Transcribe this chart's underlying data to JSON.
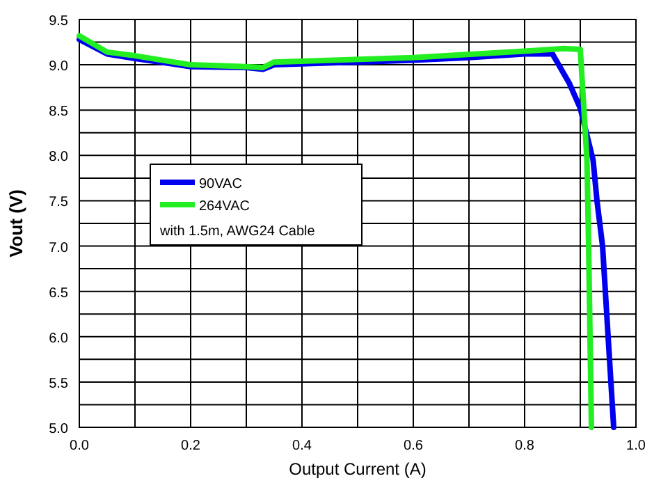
{
  "chart_data": {
    "type": "line",
    "xlabel": "Output Current (A)",
    "ylabel": "Vout (V)",
    "xlim": [
      0,
      1
    ],
    "xticks": [
      {
        "value": 0,
        "label": "0.0"
      },
      {
        "value": 0.1,
        "label": null
      },
      {
        "value": 0.2,
        "label": "0.2"
      },
      {
        "value": 0.3,
        "label": null
      },
      {
        "value": 0.4,
        "label": "0.4"
      },
      {
        "value": 0.5,
        "label": null
      },
      {
        "value": 0.6,
        "label": "0.6"
      },
      {
        "value": 0.7,
        "label": null
      },
      {
        "value": 0.8,
        "label": "0.8"
      },
      {
        "value": 0.9,
        "label": null
      },
      {
        "value": 1,
        "label": "1.0"
      }
    ],
    "ylim": [
      5,
      9.5
    ],
    "yticks": [
      {
        "value": 5,
        "label": "5.0"
      },
      {
        "value": 5.25,
        "label": null
      },
      {
        "value": 5.5,
        "label": "5.5"
      },
      {
        "value": 5.75,
        "label": null
      },
      {
        "value": 6,
        "label": "6.0"
      },
      {
        "value": 6.25,
        "label": null
      },
      {
        "value": 6.5,
        "label": "6.5"
      },
      {
        "value": 6.75,
        "label": null
      },
      {
        "value": 7,
        "label": "7.0"
      },
      {
        "value": 7.25,
        "label": null
      },
      {
        "value": 7.5,
        "label": "7.5"
      },
      {
        "value": 7.75,
        "label": null
      },
      {
        "value": 8,
        "label": "8.0"
      },
      {
        "value": 8.25,
        "label": null
      },
      {
        "value": 8.5,
        "label": "8.5"
      },
      {
        "value": 8.75,
        "label": null
      },
      {
        "value": 9,
        "label": "9.0"
      },
      {
        "value": 9.25,
        "label": null
      },
      {
        "value": 9.5,
        "label": "9.5"
      }
    ],
    "grid": true,
    "legend": "left",
    "legend_title": "with 1.5m, AWG24 Cable",
    "marker": "none",
    "line_style": "solid",
    "series": [
      {
        "name": "90VAC",
        "color": "#0000ee",
        "x": [
          0,
          0.05,
          0.1,
          0.2,
          0.3,
          0.33,
          0.35,
          0.5,
          0.6,
          0.7,
          0.8,
          0.85,
          0.88,
          0.9,
          0.923,
          0.93,
          0.94,
          0.95,
          0.96
        ],
        "values": [
          9.28,
          9.12,
          9.07,
          8.98,
          8.97,
          8.95,
          9.0,
          9.03,
          9.05,
          9.08,
          9.12,
          9.12,
          8.8,
          8.52,
          7.95,
          7.5,
          7.0,
          6.0,
          5.0
        ]
      },
      {
        "name": "264VAC",
        "color": "#22ee22",
        "x": [
          0,
          0.05,
          0.1,
          0.2,
          0.3,
          0.33,
          0.35,
          0.6,
          0.8,
          0.87,
          0.9,
          0.912,
          0.915,
          0.92
        ],
        "values": [
          9.32,
          9.14,
          9.1,
          9.0,
          8.98,
          8.97,
          9.03,
          9.08,
          9.15,
          9.18,
          9.17,
          7.95,
          7.0,
          5.0
        ]
      }
    ]
  }
}
